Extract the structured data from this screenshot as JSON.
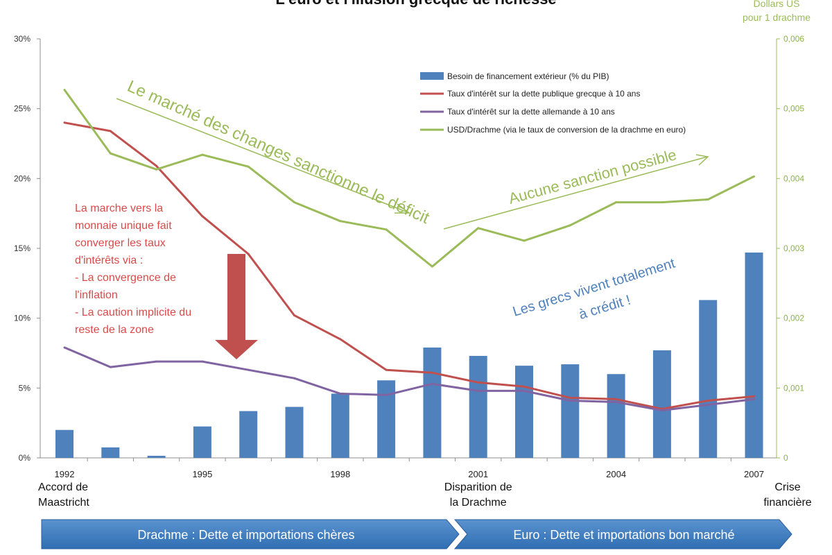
{
  "chart_data": {
    "type": "bar",
    "title": "L'euro et l'illusion grecque de richesse",
    "right_axis_title": [
      "Dollars US",
      "pour 1 drachme"
    ],
    "x": [
      1992,
      1993,
      1994,
      1995,
      1996,
      1997,
      1998,
      1999,
      2000,
      2001,
      2002,
      2003,
      2004,
      2005,
      2006,
      2007
    ],
    "x_tick_labels": [
      "1992",
      "1995",
      "1998",
      "2001",
      "2004",
      "2007"
    ],
    "y_left": {
      "ylim": [
        0,
        30
      ],
      "ticks": [
        "0%",
        "5%",
        "10%",
        "15%",
        "20%",
        "25%",
        "30%"
      ]
    },
    "y_right": {
      "ylim": [
        0,
        0.006
      ],
      "ticks": [
        "0",
        "0,001",
        "0,002",
        "0,003",
        "0,004",
        "0,005",
        "0,006"
      ]
    },
    "series": [
      {
        "name": "Besoin de financement extérieur (% du PIB)",
        "type": "bar",
        "axis": "left",
        "values": [
          2.0,
          0.75,
          0.15,
          2.25,
          3.35,
          3.65,
          4.6,
          5.55,
          7.9,
          7.3,
          6.6,
          6.7,
          6.0,
          7.7,
          11.3,
          14.7
        ],
        "color": "#4f81bd"
      },
      {
        "name": "Taux d'intérêt sur la dette publique grecque à 10 ans",
        "type": "line",
        "axis": "left",
        "values": [
          24.0,
          23.4,
          20.9,
          17.3,
          14.6,
          10.2,
          8.5,
          6.3,
          6.1,
          5.4,
          5.1,
          4.3,
          4.2,
          3.5,
          4.1,
          4.4
        ],
        "color": "#c0504d"
      },
      {
        "name": "Taux d'intérêt sur la dette allemande à 10 ans",
        "type": "line",
        "axis": "left",
        "values": [
          7.9,
          6.5,
          6.9,
          6.9,
          6.3,
          5.7,
          4.6,
          4.5,
          5.3,
          4.8,
          4.8,
          4.1,
          4.0,
          3.4,
          3.8,
          4.2
        ],
        "color": "#8064a2"
      },
      {
        "name": "USD/Drachme (via le taux de conversion de la drachme en euro)",
        "type": "line",
        "axis": "right",
        "values": [
          0.00527,
          0.00436,
          0.00413,
          0.00434,
          0.00417,
          0.00366,
          0.00339,
          0.00327,
          0.00274,
          0.00329,
          0.00311,
          0.00333,
          0.00366,
          0.00366,
          0.0037,
          0.00403
        ],
        "color": "#9bbb59"
      }
    ],
    "events": [
      {
        "year": 1992,
        "label": [
          "Accord de",
          "Maastricht"
        ]
      },
      {
        "year": 2001,
        "label": [
          "Disparition de",
          "la Drachme"
        ]
      },
      {
        "year": 2007,
        "label": [
          "Crise",
          "financière"
        ]
      }
    ],
    "annotations": {
      "market_sanction": "Le marché des changes sanctionne le déficit",
      "no_sanction": "Aucune sanction possible",
      "credit": [
        "Les grecs vivent totalement",
        "à crédit !"
      ],
      "convergence": [
        "La marche vers la",
        "monnaie unique fait",
        "converger les taux",
        "d'intérêts via :",
        "- La convergence de",
        "l'inflation",
        "- La caution implicite du",
        "reste de la zone"
      ]
    },
    "periods": [
      {
        "label": "Drachme : Dette et importations chères"
      },
      {
        "label": "Euro : Dette et importations bon marché"
      }
    ],
    "legend_position": "top-right",
    "grid": false
  }
}
